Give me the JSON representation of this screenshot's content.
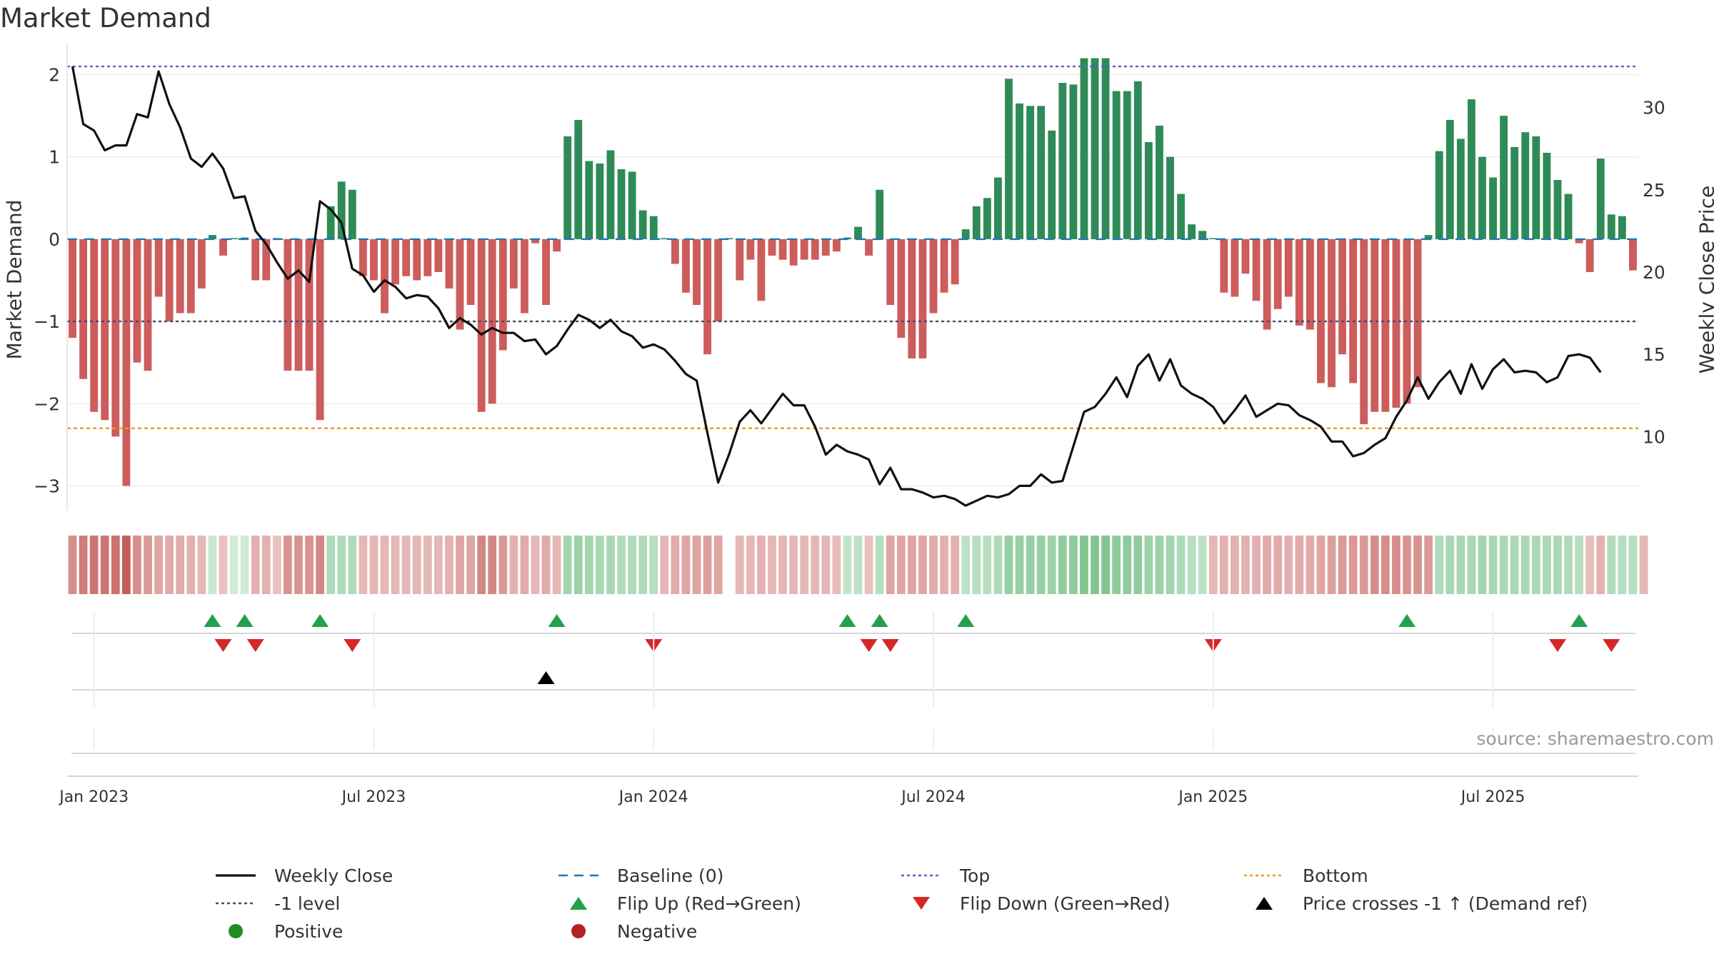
{
  "title": "Market Demand",
  "source": "source: sharemaestro.com",
  "colors": {
    "positive": "#2e8b57",
    "negative": "#cd5c5c",
    "flip_up": "#22a04b",
    "flip_down": "#d62728",
    "price_cross": "#000000",
    "top": "#6a5acd",
    "bottom": "#f09a1a",
    "minus1": "#4a4a6a",
    "baseline": "#1f77b4"
  },
  "chart_data": {
    "type": "bar+line",
    "title": "Market Demand",
    "ylabel_left": "Market Demand",
    "ylabel_right": "Weekly Close Price",
    "ylim_left": [
      -3.3,
      2.3
    ],
    "ylim_right": [
      5.5,
      33.5
    ],
    "left_ticks": [
      2,
      1,
      0,
      -1,
      -2,
      -3
    ],
    "left_tick_labels": [
      "2",
      "1",
      "0",
      "−1",
      "−2",
      "−3"
    ],
    "right_ticks": [
      30,
      25,
      20,
      15,
      10
    ],
    "right_tick_labels": [
      "30",
      "25",
      "20",
      "15",
      "10"
    ],
    "x_tick_labels": [
      "Jan 2023",
      "Jul 2023",
      "Jan 2024",
      "Jul 2024",
      "Jan 2025",
      "Jul 2025"
    ],
    "x_tick_weeks": [
      2,
      28,
      54,
      80,
      106,
      132
    ],
    "reference_lines": {
      "top": 2.1,
      "minus1": -1.0,
      "bottom": -2.3,
      "baseline": 0
    },
    "demand": [
      -1.2,
      -1.7,
      -2.1,
      -2.2,
      -2.4,
      -3.0,
      -1.5,
      -1.6,
      -0.7,
      -1.0,
      -0.9,
      -0.9,
      -0.6,
      0.05,
      -0.2,
      0.0,
      0.02,
      -0.5,
      -0.5,
      0.0,
      -1.6,
      -1.6,
      -1.6,
      -2.2,
      0.4,
      0.7,
      0.6,
      -0.45,
      -0.5,
      -0.9,
      -0.55,
      -0.45,
      -0.5,
      -0.45,
      -0.4,
      -0.6,
      -1.1,
      -0.8,
      -2.1,
      -2.0,
      -1.35,
      -0.6,
      -0.9,
      -0.05,
      -0.8,
      -0.15,
      1.25,
      1.45,
      0.95,
      0.92,
      1.08,
      0.85,
      0.82,
      0.35,
      0.28,
      0.0,
      -0.3,
      -0.65,
      -0.8,
      -1.4,
      -1.0,
      0.0,
      -0.5,
      -0.25,
      -0.75,
      -0.2,
      -0.25,
      -0.32,
      -0.25,
      -0.25,
      -0.2,
      -0.15,
      0.02,
      0.15,
      -0.2,
      0.6,
      -0.8,
      -1.2,
      -1.45,
      -1.45,
      -0.9,
      -0.65,
      -0.55,
      0.12,
      0.4,
      0.5,
      0.75,
      1.95,
      1.65,
      1.62,
      1.62,
      1.32,
      1.9,
      1.88,
      2.2,
      2.2,
      2.2,
      1.8,
      1.8,
      1.92,
      1.18,
      1.38,
      1.0,
      0.55,
      0.18,
      0.1,
      0.0,
      -0.65,
      -0.7,
      -0.42,
      -0.75,
      -1.1,
      -0.85,
      -0.7,
      -1.05,
      -1.1,
      -1.75,
      -1.8,
      -1.4,
      -1.75,
      -2.25,
      -2.1,
      -2.1,
      -2.05,
      -2.0,
      -1.8,
      0.05,
      1.07,
      1.45,
      1.22,
      1.7,
      1.0,
      0.75,
      1.5,
      1.12,
      1.3,
      1.25,
      1.05,
      0.72,
      0.55,
      -0.05,
      -0.4,
      0.98,
      0.3,
      0.28,
      -0.38
    ],
    "price": [
      32.5,
      29.0,
      28.6,
      27.4,
      27.7,
      27.7,
      29.6,
      29.4,
      32.2,
      30.2,
      28.8,
      26.9,
      26.4,
      27.2,
      26.3,
      24.5,
      24.6,
      22.5,
      21.7,
      20.6,
      19.6,
      20.1,
      19.4,
      24.3,
      23.8,
      23.0,
      20.2,
      19.8,
      18.8,
      19.5,
      19.1,
      18.4,
      18.6,
      18.5,
      17.8,
      16.6,
      17.2,
      16.8,
      16.2,
      16.6,
      16.3,
      16.3,
      15.8,
      15.9,
      15.0,
      15.5,
      16.5,
      17.4,
      17.1,
      16.6,
      17.1,
      16.4,
      16.1,
      15.4,
      15.6,
      15.3,
      14.6,
      13.8,
      13.4,
      10.2,
      7.2,
      8.9,
      10.9,
      11.6,
      10.8,
      11.7,
      12.6,
      11.9,
      11.9,
      10.6,
      8.9,
      9.5,
      9.1,
      8.9,
      8.6,
      7.1,
      8.1,
      6.8,
      6.8,
      6.6,
      6.3,
      6.4,
      6.2,
      5.8,
      6.1,
      6.4,
      6.3,
      6.5,
      7.0,
      7.0,
      7.7,
      7.2,
      7.3,
      9.4,
      11.5,
      11.8,
      12.6,
      13.6,
      12.4,
      14.3,
      15.0,
      13.4,
      14.7,
      13.1,
      12.6,
      12.3,
      11.8,
      10.8,
      11.6,
      12.5,
      11.2,
      11.6,
      12.0,
      11.9,
      11.3,
      11.0,
      10.6,
      9.7,
      9.7,
      8.8,
      9.0,
      9.5,
      9.9,
      11.2,
      12.2,
      13.6,
      12.3,
      13.3,
      14.0,
      12.6,
      14.4,
      12.9,
      14.1,
      14.7,
      13.9,
      14.0,
      13.9,
      13.3,
      13.6,
      14.9,
      15.0,
      14.8,
      13.9
    ],
    "heat_strips": [
      {
        "v": -1.2
      },
      {
        "v": -1.5
      },
      {
        "v": -1.6
      },
      {
        "v": -1.6
      },
      {
        "v": -1.7
      },
      {
        "v": -2.0
      },
      {
        "v": -1.2
      },
      {
        "v": -1.0
      },
      {
        "v": -0.8
      },
      {
        "v": -0.7
      },
      {
        "v": -0.7
      },
      {
        "v": -0.6
      },
      {
        "v": -0.5
      },
      {
        "v": 0.2
      },
      {
        "v": -0.3
      },
      {
        "v": 0.1
      },
      {
        "v": 0.1
      },
      {
        "v": -0.6
      },
      {
        "v": -0.6
      },
      {
        "v": -0.3
      },
      {
        "v": -1.1
      },
      {
        "v": -1.1
      },
      {
        "v": -1.1
      },
      {
        "v": -1.3
      },
      {
        "v": 0.6
      },
      {
        "v": 0.6
      },
      {
        "v": 0.6
      },
      {
        "v": -0.5
      },
      {
        "v": -0.5
      },
      {
        "v": -0.5
      },
      {
        "v": -0.5
      },
      {
        "v": -0.5
      },
      {
        "v": -0.5
      },
      {
        "v": -0.5
      },
      {
        "v": -0.5
      },
      {
        "v": -0.6
      },
      {
        "v": -0.8
      },
      {
        "v": -0.8
      },
      {
        "v": -1.3
      },
      {
        "v": -1.3
      },
      {
        "v": -1.0
      },
      {
        "v": -0.6
      },
      {
        "v": -0.7
      },
      {
        "v": -0.5
      },
      {
        "v": -0.7
      },
      {
        "v": -0.5
      },
      {
        "v": 0.8
      },
      {
        "v": 0.9
      },
      {
        "v": 0.8
      },
      {
        "v": 0.7
      },
      {
        "v": 0.7
      },
      {
        "v": 0.6
      },
      {
        "v": 0.6
      },
      {
        "v": 0.6
      },
      {
        "v": 0.5
      },
      {
        "v": -0.5
      },
      {
        "v": -0.7
      },
      {
        "v": -0.8
      },
      {
        "v": -0.8
      },
      {
        "v": -0.9
      },
      {
        "v": -0.8
      },
      {
        "v": null
      },
      {
        "v": -0.5
      },
      {
        "v": -0.5
      },
      {
        "v": -0.6
      },
      {
        "v": -0.5
      },
      {
        "v": -0.5
      },
      {
        "v": -0.5
      },
      {
        "v": -0.5
      },
      {
        "v": -0.5
      },
      {
        "v": -0.5
      },
      {
        "v": -0.4
      },
      {
        "v": 0.3
      },
      {
        "v": 0.4
      },
      {
        "v": -0.3
      },
      {
        "v": 0.5
      },
      {
        "v": -0.8
      },
      {
        "v": -0.8
      },
      {
        "v": -0.8
      },
      {
        "v": -0.8
      },
      {
        "v": -0.7
      },
      {
        "v": -0.6
      },
      {
        "v": -0.6
      },
      {
        "v": 0.4
      },
      {
        "v": 0.5
      },
      {
        "v": 0.5
      },
      {
        "v": 0.6
      },
      {
        "v": 1.0
      },
      {
        "v": 1.0
      },
      {
        "v": 1.0
      },
      {
        "v": 1.0
      },
      {
        "v": 0.9
      },
      {
        "v": 1.1
      },
      {
        "v": 1.1
      },
      {
        "v": 1.3
      },
      {
        "v": 1.3
      },
      {
        "v": 1.3
      },
      {
        "v": 1.1
      },
      {
        "v": 1.1
      },
      {
        "v": 1.1
      },
      {
        "v": 0.9
      },
      {
        "v": 0.9
      },
      {
        "v": 0.8
      },
      {
        "v": 0.6
      },
      {
        "v": 0.5
      },
      {
        "v": 0.4
      },
      {
        "v": -0.5
      },
      {
        "v": -0.6
      },
      {
        "v": -0.6
      },
      {
        "v": -0.6
      },
      {
        "v": -0.6
      },
      {
        "v": -0.7
      },
      {
        "v": -0.7
      },
      {
        "v": -0.6
      },
      {
        "v": -0.7
      },
      {
        "v": -0.7
      },
      {
        "v": -0.8
      },
      {
        "v": -0.9
      },
      {
        "v": -1.0
      },
      {
        "v": -1.0
      },
      {
        "v": -1.0
      },
      {
        "v": -1.2
      },
      {
        "v": -1.2
      },
      {
        "v": -1.2
      },
      {
        "v": -1.1
      },
      {
        "v": -1.1
      },
      {
        "v": -1.0
      },
      {
        "v": 0.6
      },
      {
        "v": 0.7
      },
      {
        "v": 0.7
      },
      {
        "v": 0.7
      },
      {
        "v": 0.8
      },
      {
        "v": 0.7
      },
      {
        "v": 0.7
      },
      {
        "v": 0.7
      },
      {
        "v": 0.7
      },
      {
        "v": 0.7
      },
      {
        "v": 0.7
      },
      {
        "v": 0.7
      },
      {
        "v": 0.6
      },
      {
        "v": 0.5
      },
      {
        "v": -0.4
      },
      {
        "v": -0.6
      },
      {
        "v": 0.6
      },
      {
        "v": 0.5
      },
      {
        "v": 0.5
      },
      {
        "v": -0.5
      }
    ],
    "flip_up_weeks": [
      13,
      16,
      23,
      45,
      72,
      75,
      83,
      124,
      140
    ],
    "flip_down_weeks": [
      14,
      17,
      26,
      54,
      74,
      76,
      106,
      138,
      143
    ],
    "price_cross_weeks": [
      44
    ],
    "legend": [
      {
        "label": "Weekly Close",
        "symbol": "line-solid"
      },
      {
        "label": "Baseline (0)",
        "symbol": "line-dash-blue"
      },
      {
        "label": "Top",
        "symbol": "line-dot-purple"
      },
      {
        "label": "Bottom",
        "symbol": "line-dot-orange"
      },
      {
        "label": "-1 level",
        "symbol": "line-dot-gray"
      },
      {
        "label": "Flip Up (Red→Green)",
        "symbol": "tri-up-green"
      },
      {
        "label": "Flip Down (Green→Red)",
        "symbol": "tri-down-red"
      },
      {
        "label": "Price crosses -1 ↑ (Demand ref)",
        "symbol": "tri-up-black"
      },
      {
        "label": "Positive",
        "symbol": "dot-green"
      },
      {
        "label": "Negative",
        "symbol": "dot-red"
      }
    ]
  }
}
